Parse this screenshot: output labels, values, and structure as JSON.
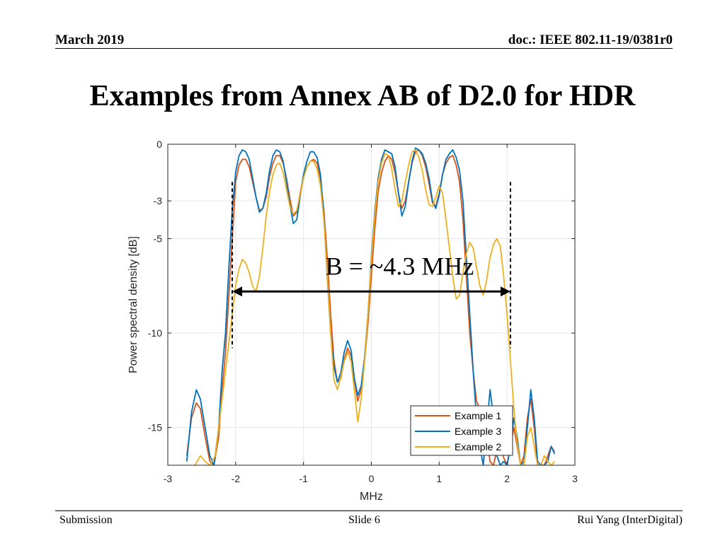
{
  "header": {
    "date": "March 2019",
    "doc": "doc.: IEEE 802.11-19/0381r0"
  },
  "title": "Examples from Annex AB of D2.0 for HDR",
  "footer": {
    "left": "Submission",
    "center": "Slide 6",
    "right": "Rui Yang (InterDigital)"
  },
  "colors": {
    "example1": "#D95319",
    "example3": "#0072BD",
    "example2": "#EDB120",
    "grid": "#E6E6E6",
    "axis": "#262626"
  },
  "chart_data": {
    "type": "line",
    "title": "",
    "xlabel": "MHz",
    "ylabel": "Power spectral density [dB]",
    "xlim": [
      -3,
      3
    ],
    "ylim": [
      -17,
      0
    ],
    "xticks": [
      -3,
      -2,
      -1,
      0,
      1,
      2,
      3
    ],
    "xtick_labels": [
      "-3",
      "-2",
      "-1",
      "0",
      "1",
      "2",
      "3"
    ],
    "yticks": [
      0,
      -3,
      -5,
      -10,
      -15
    ],
    "ytick_labels": [
      "0",
      "-3",
      "-5",
      "-10",
      "-15"
    ],
    "grid": true,
    "legend": "bottom-right",
    "series": [
      {
        "name": "Example 1",
        "color": "#D95319",
        "x": [
          -2.72,
          -2.65,
          -2.58,
          -2.52,
          -2.45,
          -2.38,
          -2.32,
          -2.25,
          -2.2,
          -2.15,
          -2.1,
          -2.05,
          -2.0,
          -1.95,
          -1.9,
          -1.85,
          -1.8,
          -1.75,
          -1.7,
          -1.65,
          -1.6,
          -1.55,
          -1.5,
          -1.45,
          -1.4,
          -1.35,
          -1.3,
          -1.25,
          -1.2,
          -1.15,
          -1.1,
          -1.05,
          -1.0,
          -0.95,
          -0.9,
          -0.85,
          -0.8,
          -0.75,
          -0.7,
          -0.65,
          -0.6,
          -0.55,
          -0.5,
          -0.45,
          -0.4,
          -0.35,
          -0.3,
          -0.25,
          -0.2,
          -0.15,
          -0.1,
          -0.05,
          0.0,
          0.05,
          0.1,
          0.15,
          0.2,
          0.25,
          0.3,
          0.35,
          0.4,
          0.45,
          0.5,
          0.55,
          0.6,
          0.65,
          0.7,
          0.75,
          0.8,
          0.85,
          0.9,
          0.95,
          1.0,
          1.05,
          1.1,
          1.15,
          1.2,
          1.25,
          1.3,
          1.35,
          1.4,
          1.45,
          1.5,
          1.55,
          1.6,
          1.65,
          1.7,
          1.75,
          1.8,
          1.85,
          1.9,
          1.95,
          2.0,
          2.05,
          2.1,
          2.15,
          2.2,
          2.25,
          2.3,
          2.35,
          2.4,
          2.45,
          2.5,
          2.55,
          2.6,
          2.65,
          2.7
        ],
        "y": [
          -16.5,
          -14.5,
          -13.7,
          -14.0,
          -15.5,
          -16.8,
          -17.0,
          -15.5,
          -13.0,
          -11.0,
          -8.0,
          -5.0,
          -2.0,
          -1.1,
          -0.8,
          -0.8,
          -1.2,
          -2.0,
          -2.8,
          -3.5,
          -3.4,
          -2.8,
          -1.7,
          -1.0,
          -0.6,
          -0.6,
          -1.0,
          -1.8,
          -2.9,
          -3.8,
          -3.6,
          -2.6,
          -1.7,
          -1.2,
          -0.9,
          -0.8,
          -1.0,
          -1.8,
          -3.5,
          -6.0,
          -9.0,
          -11.5,
          -12.6,
          -12.4,
          -11.4,
          -10.8,
          -11.2,
          -12.5,
          -13.6,
          -13.0,
          -11.5,
          -9.5,
          -7.0,
          -4.5,
          -2.5,
          -1.5,
          -0.9,
          -0.6,
          -0.8,
          -1.5,
          -2.6,
          -3.4,
          -3.0,
          -2.0,
          -1.0,
          -0.4,
          -0.3,
          -0.6,
          -1.2,
          -2.1,
          -3.1,
          -3.3,
          -2.6,
          -1.6,
          -1.0,
          -0.7,
          -0.6,
          -1.1,
          -2.0,
          -4.0,
          -7.0,
          -10.0,
          -12.0,
          -13.6,
          -14.0,
          -14.4,
          -15.5,
          -16.8,
          -17.0,
          -16.2,
          -16.0,
          -16.6,
          -17.0,
          -16.0,
          -15.0,
          -16.0,
          -17.0,
          -16.5,
          -14.5,
          -13.5,
          -15.0,
          -17.0,
          -17.0,
          -17.0,
          -16.5,
          -16.0,
          -16.3
        ]
      },
      {
        "name": "Example 3",
        "color": "#0072BD",
        "x": [
          -2.72,
          -2.65,
          -2.58,
          -2.52,
          -2.45,
          -2.38,
          -2.32,
          -2.25,
          -2.2,
          -2.15,
          -2.1,
          -2.05,
          -2.0,
          -1.95,
          -1.9,
          -1.85,
          -1.8,
          -1.75,
          -1.7,
          -1.65,
          -1.6,
          -1.55,
          -1.5,
          -1.45,
          -1.4,
          -1.35,
          -1.3,
          -1.25,
          -1.2,
          -1.15,
          -1.1,
          -1.05,
          -1.0,
          -0.95,
          -0.9,
          -0.85,
          -0.8,
          -0.75,
          -0.7,
          -0.65,
          -0.6,
          -0.55,
          -0.5,
          -0.45,
          -0.4,
          -0.35,
          -0.3,
          -0.25,
          -0.2,
          -0.15,
          -0.1,
          -0.05,
          0.0,
          0.05,
          0.1,
          0.15,
          0.2,
          0.25,
          0.3,
          0.35,
          0.4,
          0.45,
          0.5,
          0.55,
          0.6,
          0.65,
          0.7,
          0.75,
          0.8,
          0.85,
          0.9,
          0.95,
          1.0,
          1.05,
          1.1,
          1.15,
          1.2,
          1.25,
          1.3,
          1.35,
          1.4,
          1.45,
          1.5,
          1.55,
          1.6,
          1.65,
          1.7,
          1.75,
          1.8,
          1.85,
          1.9,
          1.95,
          2.0,
          2.05,
          2.1,
          2.15,
          2.2,
          2.25,
          2.3,
          2.35,
          2.4,
          2.45,
          2.5,
          2.55,
          2.6,
          2.65,
          2.7
        ],
        "y": [
          -16.8,
          -14.2,
          -13.0,
          -13.5,
          -15.0,
          -16.5,
          -17.0,
          -15.0,
          -12.0,
          -10.0,
          -6.5,
          -3.5,
          -1.5,
          -0.6,
          -0.3,
          -0.4,
          -0.8,
          -1.8,
          -2.8,
          -3.6,
          -3.4,
          -2.6,
          -1.4,
          -0.6,
          -0.3,
          -0.4,
          -0.9,
          -2.0,
          -3.2,
          -4.2,
          -4.0,
          -2.8,
          -1.6,
          -0.9,
          -0.4,
          -0.4,
          -0.7,
          -1.6,
          -3.8,
          -7.0,
          -10.0,
          -11.8,
          -12.6,
          -12.1,
          -11.0,
          -10.4,
          -10.9,
          -12.4,
          -13.3,
          -12.8,
          -11.3,
          -9.0,
          -6.0,
          -3.6,
          -1.8,
          -0.8,
          -0.3,
          -0.4,
          -0.5,
          -1.2,
          -2.6,
          -3.8,
          -3.3,
          -2.0,
          -0.9,
          -0.2,
          -0.3,
          -0.5,
          -1.0,
          -1.8,
          -3.0,
          -3.4,
          -2.7,
          -1.6,
          -0.8,
          -0.5,
          -0.3,
          -0.7,
          -1.4,
          -3.0,
          -6.0,
          -9.0,
          -12.0,
          -14.5,
          -16.0,
          -17.0,
          -15.0,
          -13.0,
          -14.5,
          -16.5,
          -17.0,
          -16.8,
          -17.0,
          -16.0,
          -14.5,
          -15.5,
          -17.0,
          -16.8,
          -15.0,
          -13.0,
          -14.5,
          -16.8,
          -17.0,
          -17.0,
          -16.8,
          -16.0,
          -16.4
        ]
      },
      {
        "name": "Example 2",
        "color": "#EDB120",
        "x": [
          -2.6,
          -2.52,
          -2.45,
          -2.38,
          -2.3,
          -2.25,
          -2.2,
          -2.15,
          -2.1,
          -2.05,
          -2.0,
          -1.95,
          -1.9,
          -1.85,
          -1.8,
          -1.75,
          -1.7,
          -1.65,
          -1.6,
          -1.55,
          -1.5,
          -1.45,
          -1.4,
          -1.35,
          -1.3,
          -1.25,
          -1.2,
          -1.15,
          -1.1,
          -1.05,
          -1.0,
          -0.95,
          -0.9,
          -0.85,
          -0.8,
          -0.75,
          -0.7,
          -0.65,
          -0.6,
          -0.55,
          -0.5,
          -0.45,
          -0.4,
          -0.35,
          -0.3,
          -0.25,
          -0.2,
          -0.15,
          -0.1,
          -0.05,
          0.0,
          0.05,
          0.1,
          0.15,
          0.2,
          0.25,
          0.3,
          0.35,
          0.4,
          0.45,
          0.5,
          0.55,
          0.6,
          0.65,
          0.7,
          0.75,
          0.8,
          0.85,
          0.9,
          0.95,
          1.0,
          1.05,
          1.1,
          1.15,
          1.2,
          1.25,
          1.3,
          1.35,
          1.4,
          1.45,
          1.5,
          1.55,
          1.6,
          1.65,
          1.7,
          1.75,
          1.8,
          1.85,
          1.9,
          1.95,
          2.0,
          2.05,
          2.1,
          2.15,
          2.2,
          2.25,
          2.3,
          2.35,
          2.4,
          2.45,
          2.5,
          2.55,
          2.6,
          2.65,
          2.7
        ],
        "y": [
          -17.0,
          -16.5,
          -16.8,
          -17.0,
          -16.5,
          -15.0,
          -13.5,
          -12.0,
          -10.5,
          -9.0,
          -7.5,
          -6.6,
          -6.1,
          -6.3,
          -6.8,
          -7.5,
          -7.8,
          -7.0,
          -5.5,
          -3.8,
          -2.5,
          -1.6,
          -1.1,
          -1.0,
          -1.5,
          -2.4,
          -3.3,
          -3.7,
          -3.5,
          -2.7,
          -1.8,
          -1.2,
          -0.9,
          -0.9,
          -1.3,
          -2.2,
          -4.0,
          -6.8,
          -10.0,
          -12.5,
          -13.0,
          -12.3,
          -11.5,
          -11.0,
          -11.5,
          -13.0,
          -14.7,
          -13.5,
          -11.5,
          -9.0,
          -6.2,
          -3.8,
          -2.0,
          -1.0,
          -0.5,
          -0.6,
          -1.3,
          -2.4,
          -3.3,
          -3.0,
          -2.0,
          -1.1,
          -0.4,
          -0.3,
          -0.7,
          -1.4,
          -2.4,
          -3.2,
          -3.3,
          -2.8,
          -2.2,
          -2.6,
          -4.0,
          -5.5,
          -7.0,
          -8.2,
          -8.0,
          -6.8,
          -5.8,
          -5.2,
          -5.5,
          -6.5,
          -7.5,
          -8.0,
          -7.2,
          -6.0,
          -5.3,
          -5.0,
          -5.4,
          -7.0,
          -9.0,
          -11.5,
          -14.0,
          -15.8,
          -17.0,
          -17.0,
          -15.5,
          -15.0,
          -16.0,
          -17.0,
          -17.0,
          -16.5,
          -16.8,
          -17.0,
          -16.8
        ]
      }
    ],
    "annotations": [
      {
        "text": "B = ~4.3 MHz",
        "type": "double-arrow",
        "x_start": -2.05,
        "x_end": 2.05,
        "y": -7.8
      },
      {
        "type": "dashed-vline",
        "x": -2.05,
        "y_from": -2.0,
        "y_to": -10.8
      },
      {
        "type": "dashed-vline",
        "x": 2.05,
        "y_from": -2.0,
        "y_to": -10.8
      }
    ]
  }
}
